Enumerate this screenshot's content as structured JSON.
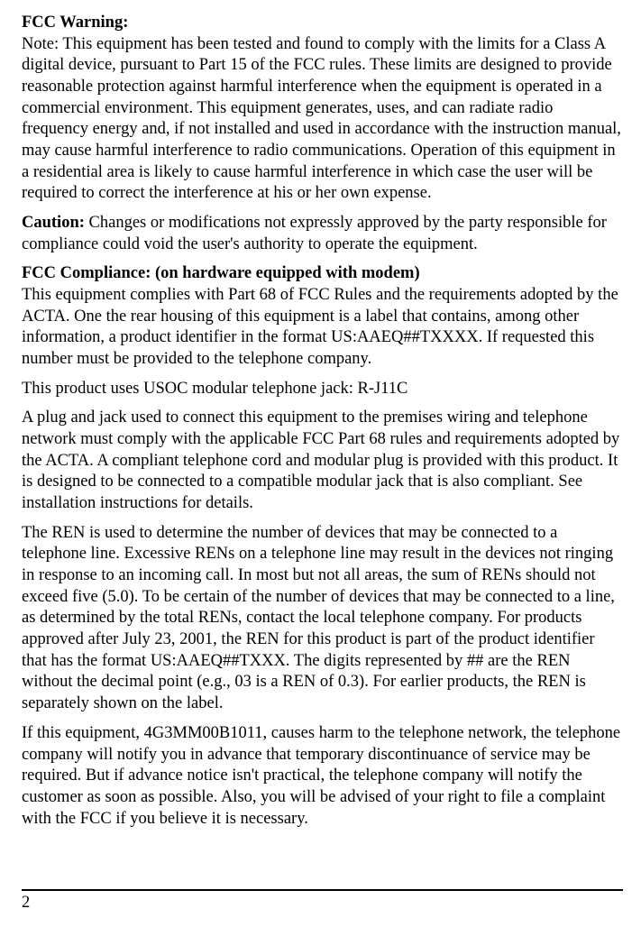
{
  "text_color": "#000000",
  "background_color": "#ffffff",
  "font_family": "Times New Roman",
  "base_fontsize": 18.5,
  "line_height": 1.28,
  "section1": {
    "heading": "FCC Warning:",
    "body": "Note: This equipment has been tested and found to comply with the limits for a Class A digital device, pursuant to Part 15 of the FCC rules. These limits are designed to provide reasonable protection against harmful interference when the equipment is operated in a commercial environment. This equipment generates, uses, and can radiate radio frequency energy and, if not installed and used in accordance with the instruction manual, may cause harmful interference to radio communications. Operation of this equipment in a residential area is likely to cause harmful interference in which case the user will be required to correct the interference at his or her own expense."
  },
  "section2": {
    "heading": "Caution:",
    "body": "   Changes or modifications not expressly approved by the party responsible for compliance could void the user's authority to operate the equipment."
  },
  "section3": {
    "heading": "FCC Compliance: (on hardware equipped with modem)",
    "para1": "This equipment complies with Part 68 of FCC Rules and the requirements adopted by the ACTA. One the rear housing of this equipment is a label that contains, among other information, a product identifier in the format US:AAEQ##TXXXX.   If requested this number must be provided to the telephone company.",
    "para2": "This product uses USOC modular telephone jack: R-J11C",
    "para3": "A plug and jack used to connect this equipment to the premises wiring and telephone network must comply with the applicable FCC Part 68 rules and requirements adopted by the ACTA.   A compliant telephone cord and modular plug is provided with this product.   It is designed to be connected to a compatible modular jack that is also compliant.   See installation instructions for details.",
    "para4": "The REN is used to determine the number of devices that may be connected to a telephone line.   Excessive RENs on a telephone line may result in the devices not ringing in response to an incoming call.   In most but not all areas, the sum of RENs should not exceed five (5.0).   To be certain of the number of devices that may be connected to a line, as determined by the total RENs, contact the local telephone company.   For products approved after July 23, 2001, the REN for this product is part of the product identifier that has the format US:AAEQ##TXXX.   The digits represented by ## are the REN without the decimal point (e.g., 03 is a REN of 0.3).   For earlier products, the REN is separately shown on the label.",
    "para5": "If this equipment, 4G3MM00B1011, causes harm to the telephone network, the telephone company will notify you in advance that temporary discontinuance of service may be required.   But if advance notice isn't practical, the telephone company will notify the customer as soon as possible.   Also, you will be advised of your right to file a complaint with the FCC if you believe it is necessary."
  },
  "pageNumber": "2",
  "footer_border_color": "#000000"
}
